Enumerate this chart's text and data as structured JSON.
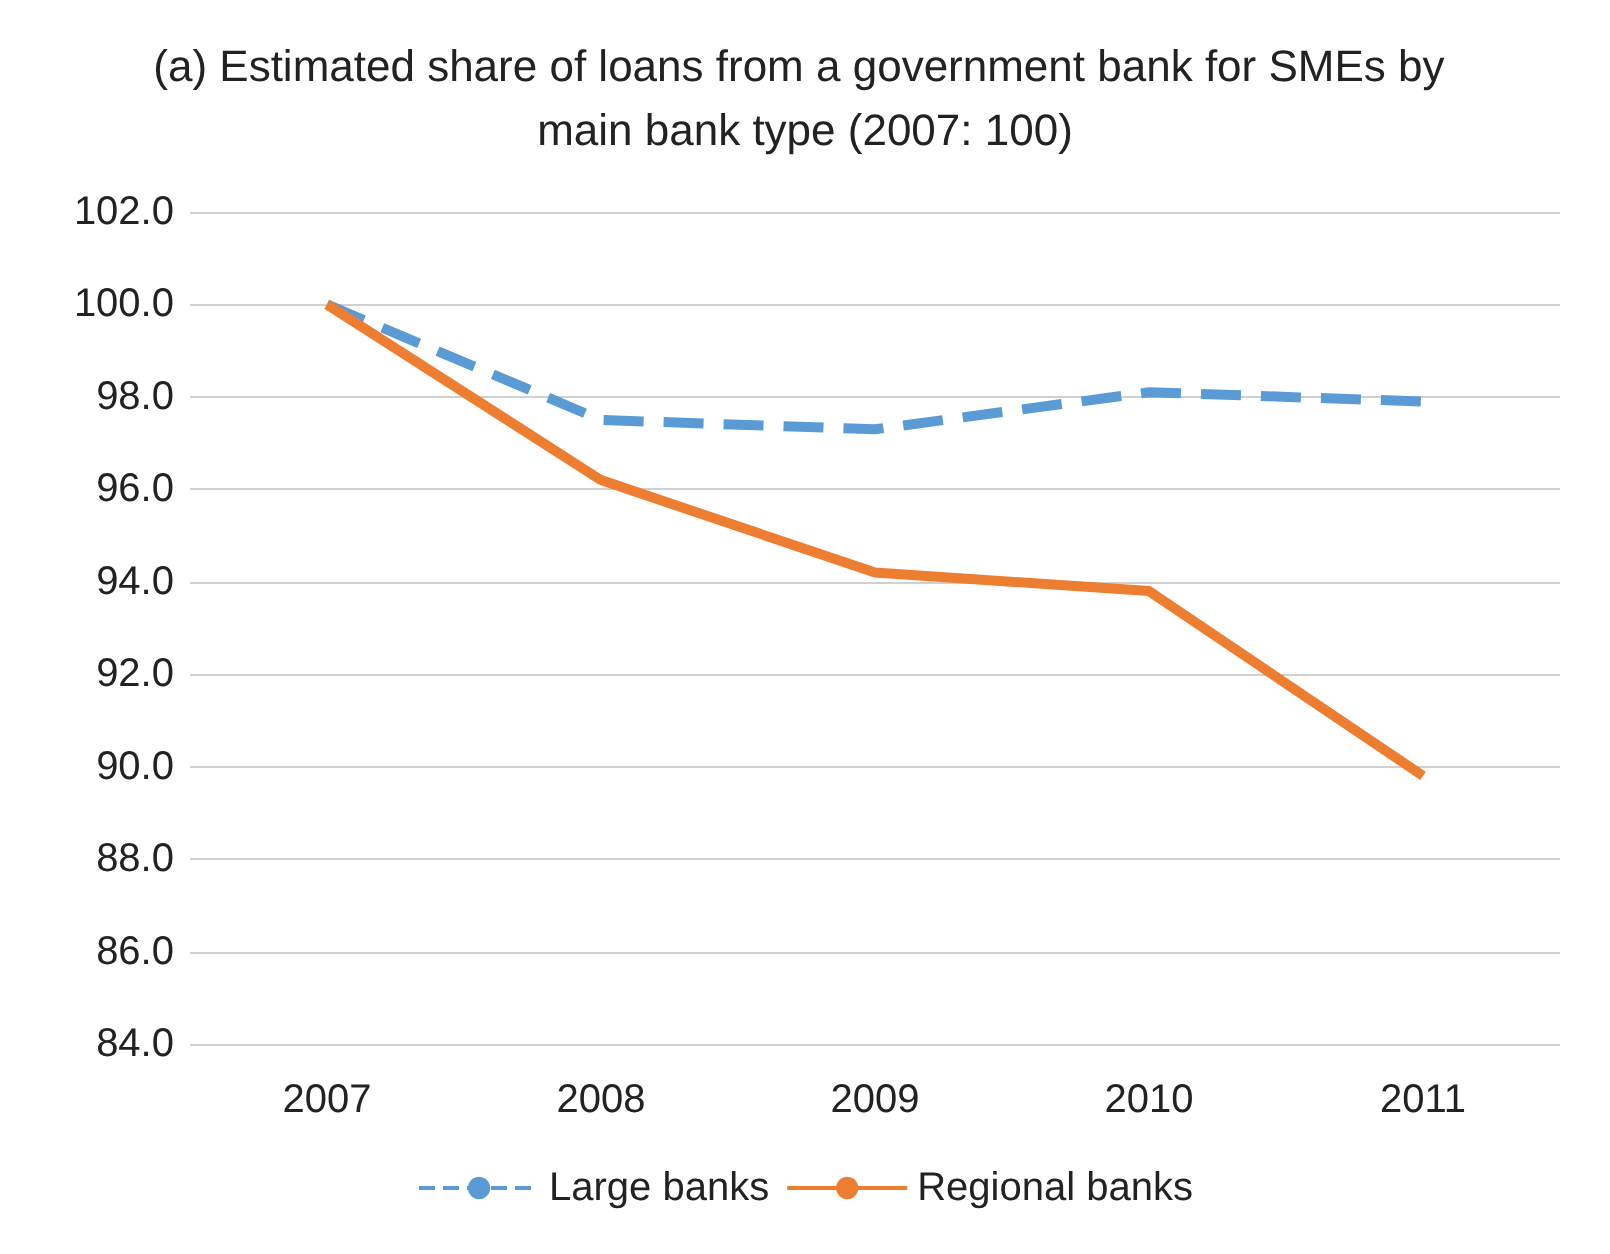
{
  "chart_data": {
    "type": "line",
    "title": "(a) Estimated share of loans from a government bank for SMEs by main bank type (2007: 100)",
    "categories": [
      "2007",
      "2008",
      "2009",
      "2010",
      "2011"
    ],
    "series": [
      {
        "name": "Large banks",
        "color": "#5b9bd5",
        "line_style": "dashed",
        "values": [
          100,
          97.5,
          97.3,
          98.1,
          97.9
        ]
      },
      {
        "name": "Regional banks",
        "color": "#ed7d31",
        "line_style": "solid",
        "values": [
          100,
          96.2,
          94.2,
          93.8,
          89.8
        ]
      }
    ],
    "ylim": [
      84,
      102
    ],
    "yticks": [
      {
        "value": 84,
        "label": "84.0"
      },
      {
        "value": 86,
        "label": "86.0"
      },
      {
        "value": 88,
        "label": "88.0"
      },
      {
        "value": 90,
        "label": "90.0"
      },
      {
        "value": 92,
        "label": "92.0"
      },
      {
        "value": 94,
        "label": "94.0"
      },
      {
        "value": 96,
        "label": "96.0"
      },
      {
        "value": 98,
        "label": "98.0"
      },
      {
        "value": 100,
        "label": "100.0"
      },
      {
        "value": 102,
        "label": "102.0"
      }
    ],
    "grid": "y",
    "legend": "bottom",
    "marker": "none"
  }
}
